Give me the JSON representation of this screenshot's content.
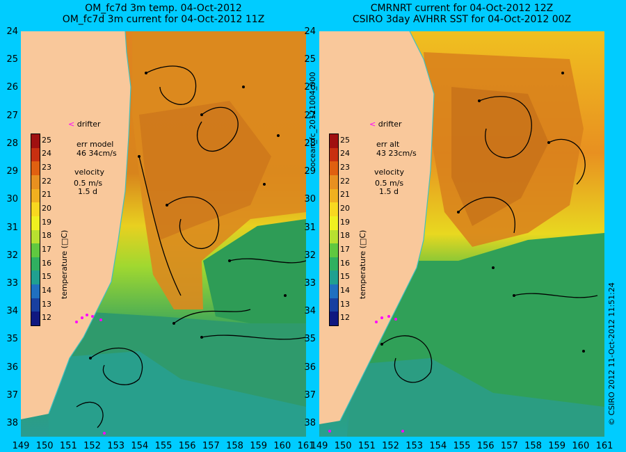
{
  "left": {
    "title_line1": "OM_fc7d 3m temp. 04-Oct-2012",
    "title_line2": "OM_fc7d 3m current for 04-Oct-2012 11Z",
    "legend": {
      "drifter": "drifter",
      "err_label": "err model",
      "err_value": "46 34cm/s",
      "velocity_label": "velocity",
      "velocity_value": "0.5 m/s",
      "velocity_days": "1.5 d"
    }
  },
  "right": {
    "title_line1": "CMRNRT current for 04-Oct-2012 12Z",
    "title_line2": "CSIRO 3day AVHRR SST for 04-Oct-2012 00Z",
    "legend": {
      "drifter": "drifter",
      "err_label": "err alt",
      "err_value": "43 23cm/s",
      "velocity_label": "velocity",
      "velocity_value": "0.5 m/s",
      "velocity_days": "1.5 d"
    }
  },
  "colorbar": {
    "label": "temperature (□C)",
    "ticks": [
      "25",
      "24",
      "23",
      "22",
      "21",
      "20",
      "19",
      "18",
      "17",
      "16",
      "15",
      "14",
      "13",
      "12"
    ],
    "colors": [
      "#a01010",
      "#c83010",
      "#e06010",
      "#e89020",
      "#f0b020",
      "#f8d820",
      "#f0f020",
      "#b8e030",
      "#60c840",
      "#30b060",
      "#20a090",
      "#2070c0",
      "#1840a0",
      "#101880"
    ]
  },
  "axes": {
    "lat_labels": [
      "24",
      "25",
      "26",
      "27",
      "28",
      "29",
      "30",
      "31",
      "32",
      "33",
      "34",
      "35",
      "36",
      "37",
      "38"
    ],
    "lon_labels": [
      "149",
      "150",
      "151",
      "152",
      "153",
      "154",
      "155",
      "156",
      "157",
      "158",
      "159",
      "160",
      "161"
    ]
  },
  "side_text": {
    "run_id": "ocean_fc_20121004_000",
    "footer": "© CSIRO 2012   11-Oct-2012 11:51:24"
  },
  "colors": {
    "background": "#00ccff",
    "land": "#f9c89b",
    "warm": "#e08a20",
    "mid": "#f0e030",
    "cool": "#2c9a5a",
    "cold": "#2aa0a0",
    "drifter": "#ff00ff",
    "coastline": "#40c0c0"
  }
}
